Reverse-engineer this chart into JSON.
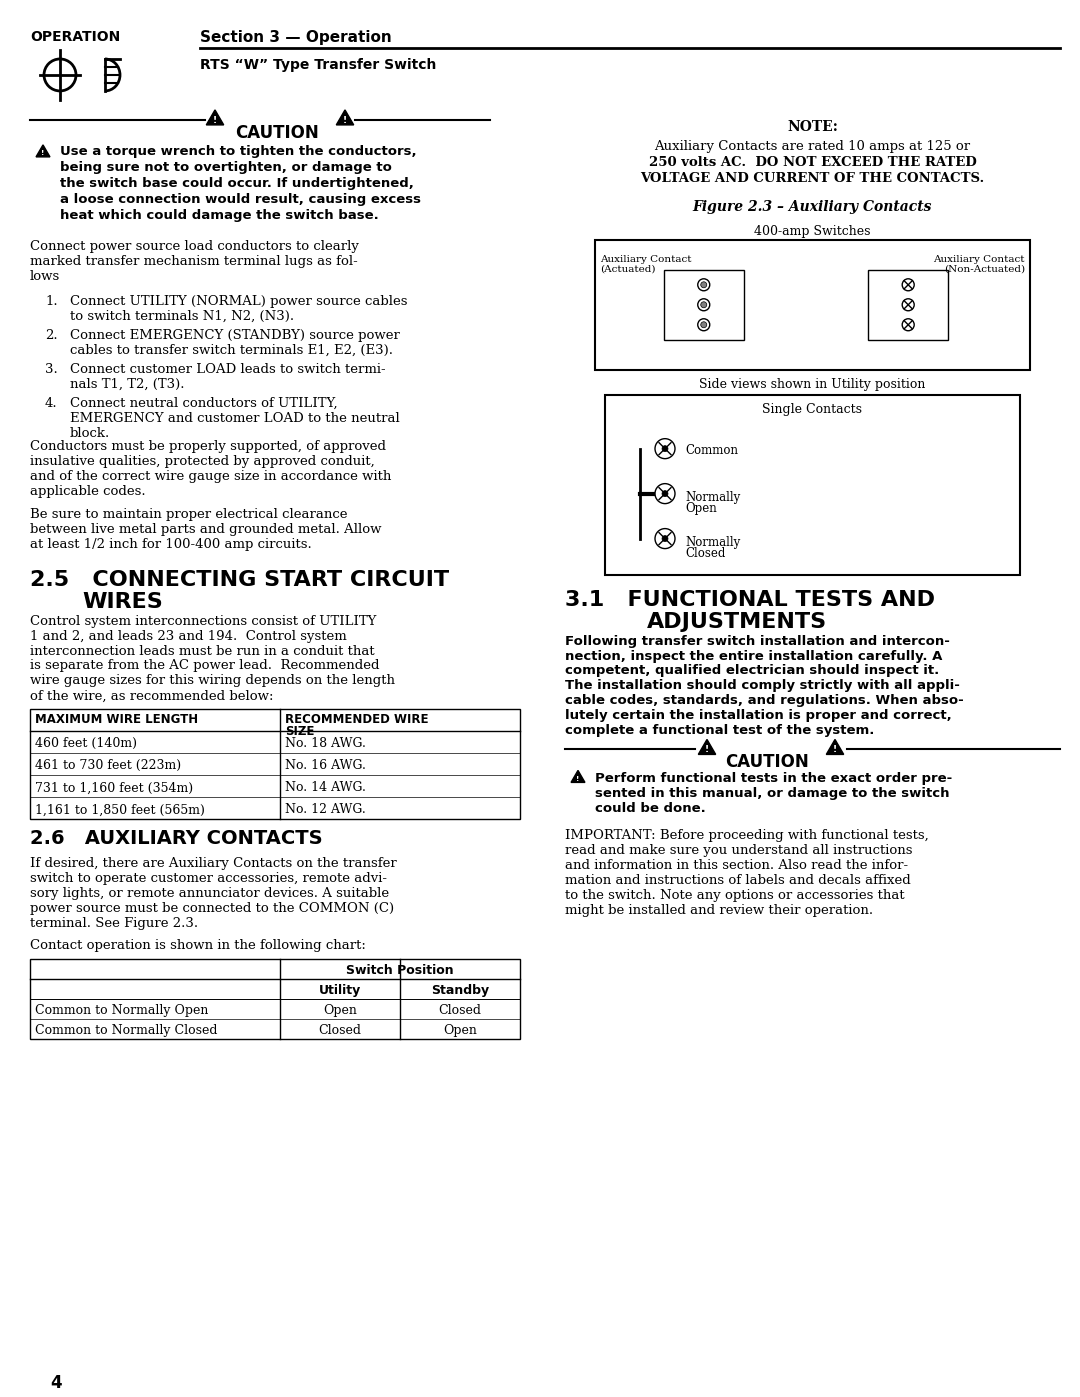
{
  "bg_color": "#ffffff",
  "header": {
    "section_label": "OPERATION",
    "section_title": "Section 3 — Operation",
    "subtitle": "RTS “W” Type Transfer Switch"
  },
  "caution_header": "CAUTION",
  "caution_text": "Use a torque wrench to tighten the conductors, being sure not to overtighten, or damage to\nthe switch base could occur. If undertightened,\na loose connection would result, causing excess\nheat which could damage the switch base.",
  "body_para1": "Connect power source load conductors to clearly marked transfer mechanism terminal lugs as follows",
  "numbered_list": [
    "Connect UTILITY (NORMAL) power source cables\nto switch terminals N1, N2, (N3).",
    "Connect EMERGENCY (STANDBY) source power\ncables to transfer switch terminals E1, E2, (E3).",
    "Connect customer LOAD leads to switch terminals T1, T2, (T3).",
    "Connect neutral conductors of UTILITY,\nEMERGENCY and customer LOAD to the neutral\nblock."
  ],
  "body_para2": "Conductors must be properly supported, of approved insulative qualities, protected by approved conduit, and of the correct wire gauge size in accordance with applicable codes.",
  "body_para3": "Be sure to maintain proper electrical clearance between live metal parts and grounded metal. Allow at least 1/2 inch for 100-400 amp circuits.",
  "section25_title": "2.5   CONNECTING START CIRCUIT\n        WIRES",
  "section25_body": "Control system interconnections consist of UTILITY 1 and 2, and leads 23 and 194. Control system interconnection leads must be run in a conduit that is separate from the AC power lead. Recommended wire gauge sizes for this wiring depends on the length of the wire, as recommended below:",
  "wire_table_headers": [
    "MAXIMUM WIRE LENGTH",
    "RECOMMENDED WIRE\nSIZE"
  ],
  "wire_table_rows": [
    [
      "460 feet (140m)",
      "No. 18 AWG."
    ],
    [
      "461 to 730 feet (223m)",
      "No. 16 AWG."
    ],
    [
      "731 to 1,160 feet (354m)",
      "No. 14 AWG."
    ],
    [
      "1,161 to 1,850 feet (565m)",
      "No. 12 AWG."
    ]
  ],
  "section26_title": "2.6   AUXILIARY CONTACTS",
  "section26_body": "If desired, there are Auxiliary Contacts on the transfer switch to operate customer accessories, remote advisory lights, or remote annunciator devices. A suitable power source must be connected to the COMMON (C) terminal. See Figure 2.3.",
  "section26_body2": "Contact operation is shown in the following chart:",
  "contact_table_headers": [
    "",
    "Switch Position",
    ""
  ],
  "contact_table_subheaders": [
    "",
    "Utility",
    "Standby"
  ],
  "contact_table_rows": [
    [
      "Common to Normally Open",
      "Open",
      "Closed"
    ],
    [
      "Common to Normally Closed",
      "Closed",
      "Open"
    ]
  ],
  "note_text": "NOTE:\nAuxiliary Contacts are rated 10 amps at 125 or 250 volts AC. DO NOT EXCEED THE RATED VOLTAGE AND CURRENT OF THE CONTACTS.",
  "fig_caption": "Figure 2.3 – Auxiliary Contacts",
  "fig_label_400amp": "400-amp Switches",
  "fig_label_aux_act": "Auxiliary Contact\n(Actuated)",
  "fig_label_aux_nonact": "Auxiliary Contact\n(Non-Actuated)",
  "fig_label_sideview": "Side views shown in Utility position",
  "fig_label_single": "Single Contacts",
  "fig_label_common": "Common",
  "fig_label_no": "Normally\nOpen",
  "fig_label_nc": "Normally\nClosed",
  "section31_title": "3.1   FUNCTIONAL TESTS AND\n        ADJUSTMENTS",
  "section31_body_bold": "Following transfer switch installation and interconnection, inspect the entire installation carefully. A competent, qualified electrician should inspect it. The installation should comply strictly with all applicable codes, standards, and regulations. When absolutely certain the installation is proper and correct, complete a functional test of the system.",
  "caution2_header": "CAUTION",
  "caution2_text": "Perform functional tests in the exact order presented in this manual, or damage to the switch could be done.",
  "section31_body2": "IMPORTANT: Before proceeding with functional tests, read and make sure you understand all instructions and information in this section. Also read the information and instructions of labels and decals affixed to the switch. Note any options or accessories that might be installed and review their operation.",
  "page_num": "4"
}
